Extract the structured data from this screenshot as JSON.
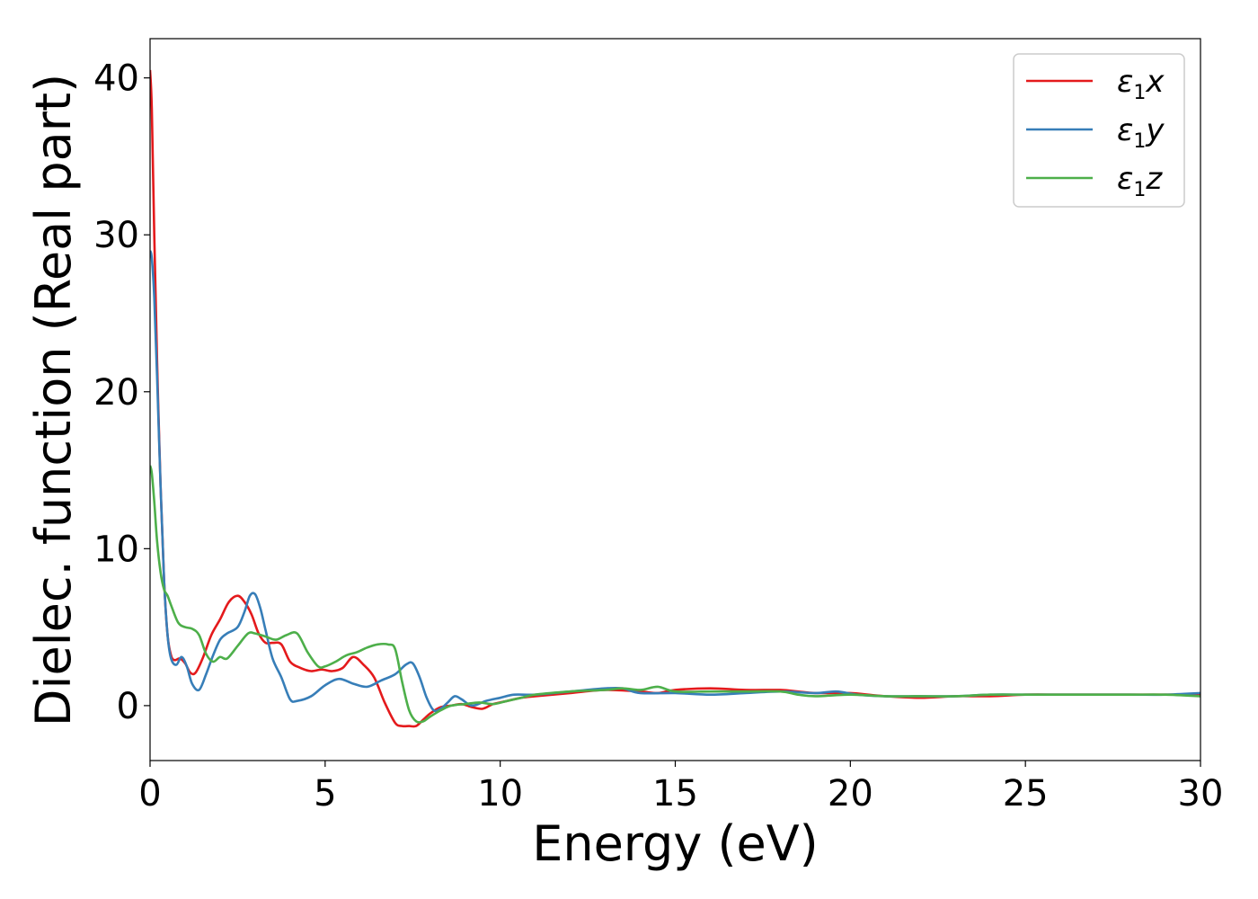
{
  "chart_data": {
    "type": "line",
    "title": "",
    "xlabel": "Energy (eV)",
    "ylabel": "Dielec. function (Real part)",
    "xlim": [
      0,
      30
    ],
    "ylim": [
      -3.5,
      42.5
    ],
    "xticks": [
      0,
      5,
      10,
      15,
      20,
      25,
      30
    ],
    "yticks": [
      0,
      10,
      20,
      30,
      40
    ],
    "grid": false,
    "legend_position": "top-right",
    "series": [
      {
        "name": "ε₁x",
        "legend": {
          "base": "ε",
          "sub": "1",
          "var": "x"
        },
        "color": "#e41a1c",
        "x": [
          0,
          0.05,
          0.12,
          0.2,
          0.3,
          0.4,
          0.5,
          0.6,
          0.7,
          0.85,
          1.0,
          1.15,
          1.3,
          1.5,
          1.75,
          2.0,
          2.25,
          2.5,
          2.7,
          2.9,
          3.1,
          3.3,
          3.5,
          3.75,
          4.0,
          4.3,
          4.6,
          4.9,
          5.2,
          5.5,
          5.8,
          6.1,
          6.4,
          6.7,
          7.0,
          7.2,
          7.4,
          7.6,
          7.8,
          8.0,
          8.3,
          8.6,
          8.9,
          9.2,
          9.5,
          9.8,
          10.2,
          10.6,
          11.0,
          12.0,
          13.0,
          14.0,
          14.5,
          15.0,
          16.0,
          17.0,
          18.0,
          18.5,
          19.0,
          20.0,
          20.5,
          21.0,
          22.0,
          23.0,
          24.0,
          25.0,
          26.0,
          27.0,
          28.0,
          29.0,
          30.0
        ],
        "y": [
          40.5,
          38,
          30,
          22,
          14,
          8,
          4.5,
          3.2,
          2.9,
          3.0,
          2.7,
          2.1,
          2.1,
          3.0,
          4.5,
          5.5,
          6.6,
          7.0,
          6.6,
          5.8,
          4.6,
          4.0,
          4.0,
          3.9,
          2.8,
          2.4,
          2.2,
          2.3,
          2.2,
          2.4,
          3.1,
          2.6,
          1.8,
          0.2,
          -1.1,
          -1.3,
          -1.3,
          -1.3,
          -0.9,
          -0.5,
          -0.1,
          0.0,
          0.1,
          -0.1,
          -0.2,
          0.1,
          0.3,
          0.5,
          0.6,
          0.8,
          1.0,
          0.9,
          0.8,
          1.0,
          1.1,
          1.0,
          1.0,
          0.9,
          0.8,
          0.8,
          0.7,
          0.6,
          0.5,
          0.6,
          0.6,
          0.7,
          0.7,
          0.7,
          0.7,
          0.7,
          0.7
        ]
      },
      {
        "name": "ε₁y",
        "legend": {
          "base": "ε",
          "sub": "1",
          "var": "y"
        },
        "color": "#377eb8",
        "x": [
          0,
          0.05,
          0.12,
          0.2,
          0.3,
          0.4,
          0.5,
          0.6,
          0.75,
          0.9,
          1.05,
          1.2,
          1.4,
          1.6,
          1.8,
          2.0,
          2.2,
          2.5,
          2.7,
          2.85,
          3.0,
          3.15,
          3.3,
          3.5,
          3.75,
          4.0,
          4.2,
          4.6,
          5.0,
          5.4,
          5.8,
          6.2,
          6.6,
          7.0,
          7.3,
          7.5,
          7.7,
          7.9,
          8.1,
          8.3,
          8.5,
          8.7,
          8.9,
          9.2,
          9.6,
          10.0,
          10.4,
          11.0,
          12.0,
          13.0,
          13.5,
          14.0,
          15.0,
          16.0,
          17.0,
          18.0,
          19.0,
          19.6,
          20.2,
          21.0,
          22.0,
          23.0,
          24.0,
          25.0,
          26.0,
          27.0,
          28.0,
          29.0,
          30.0
        ],
        "y": [
          29.0,
          28.5,
          26,
          21,
          14,
          8,
          4.5,
          3.0,
          2.6,
          3.1,
          2.5,
          1.4,
          1.0,
          2.0,
          3.2,
          4.2,
          4.6,
          5.0,
          6.0,
          7.0,
          7.1,
          6.2,
          4.8,
          3.0,
          1.8,
          0.4,
          0.3,
          0.6,
          1.3,
          1.7,
          1.4,
          1.2,
          1.6,
          2.0,
          2.6,
          2.7,
          1.8,
          0.5,
          -0.3,
          -0.2,
          0.2,
          0.6,
          0.4,
          0.0,
          0.3,
          0.5,
          0.7,
          0.7,
          0.9,
          1.1,
          1.1,
          0.8,
          0.8,
          0.7,
          0.8,
          0.9,
          0.8,
          0.9,
          0.7,
          0.6,
          0.6,
          0.6,
          0.7,
          0.7,
          0.7,
          0.7,
          0.7,
          0.7,
          0.8
        ]
      },
      {
        "name": "ε₁z",
        "legend": {
          "base": "ε",
          "sub": "1",
          "var": "z"
        },
        "color": "#4daf4a",
        "x": [
          0,
          0.05,
          0.12,
          0.2,
          0.3,
          0.4,
          0.5,
          0.6,
          0.8,
          1.0,
          1.2,
          1.4,
          1.6,
          1.8,
          2.0,
          2.2,
          2.5,
          2.8,
          3.0,
          3.3,
          3.6,
          3.9,
          4.2,
          4.5,
          4.8,
          5.0,
          5.3,
          5.6,
          5.9,
          6.2,
          6.5,
          6.8,
          7.0,
          7.2,
          7.4,
          7.6,
          7.8,
          8.0,
          8.3,
          8.6,
          9.0,
          9.4,
          9.8,
          10.2,
          10.6,
          11.0,
          12.0,
          13.0,
          13.5,
          14.0,
          14.5,
          15.0,
          16.0,
          17.0,
          18.0,
          18.5,
          19.0,
          20.0,
          21.0,
          22.0,
          23.0,
          24.0,
          25.0,
          26.0,
          27.0,
          28.0,
          29.0,
          30.0
        ],
        "y": [
          15.3,
          14.8,
          13,
          10.5,
          8.5,
          7.4,
          7.0,
          6.4,
          5.3,
          5.0,
          4.9,
          4.5,
          3.3,
          2.8,
          3.1,
          3.0,
          3.8,
          4.6,
          4.6,
          4.4,
          4.2,
          4.5,
          4.6,
          3.4,
          2.5,
          2.5,
          2.8,
          3.2,
          3.4,
          3.7,
          3.9,
          3.9,
          3.6,
          1.5,
          -0.3,
          -1.0,
          -1.0,
          -0.7,
          -0.3,
          0.0,
          0.1,
          0.2,
          0.1,
          0.3,
          0.5,
          0.7,
          0.9,
          1.0,
          1.1,
          1.0,
          1.2,
          0.9,
          0.9,
          0.9,
          0.9,
          0.7,
          0.6,
          0.7,
          0.6,
          0.6,
          0.6,
          0.7,
          0.7,
          0.7,
          0.7,
          0.7,
          0.7,
          0.6
        ]
      }
    ]
  }
}
